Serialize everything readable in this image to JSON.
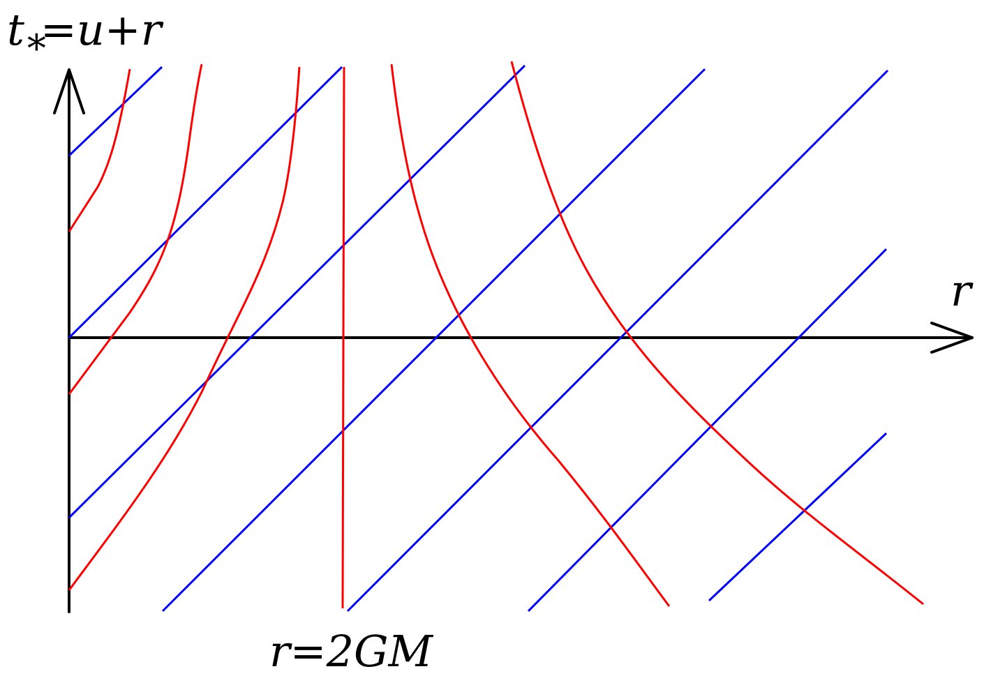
{
  "axes": {
    "vertical_label_base": "t",
    "vertical_label_sub": "*",
    "vertical_label_rest": "=u+r",
    "horizontal_label": "r",
    "horizon_label": "r=2GM"
  },
  "colors": {
    "axis": "#000000",
    "ingoing_null_rays": "#ff0000",
    "outgoing_null_rays": "#0000ff"
  }
}
